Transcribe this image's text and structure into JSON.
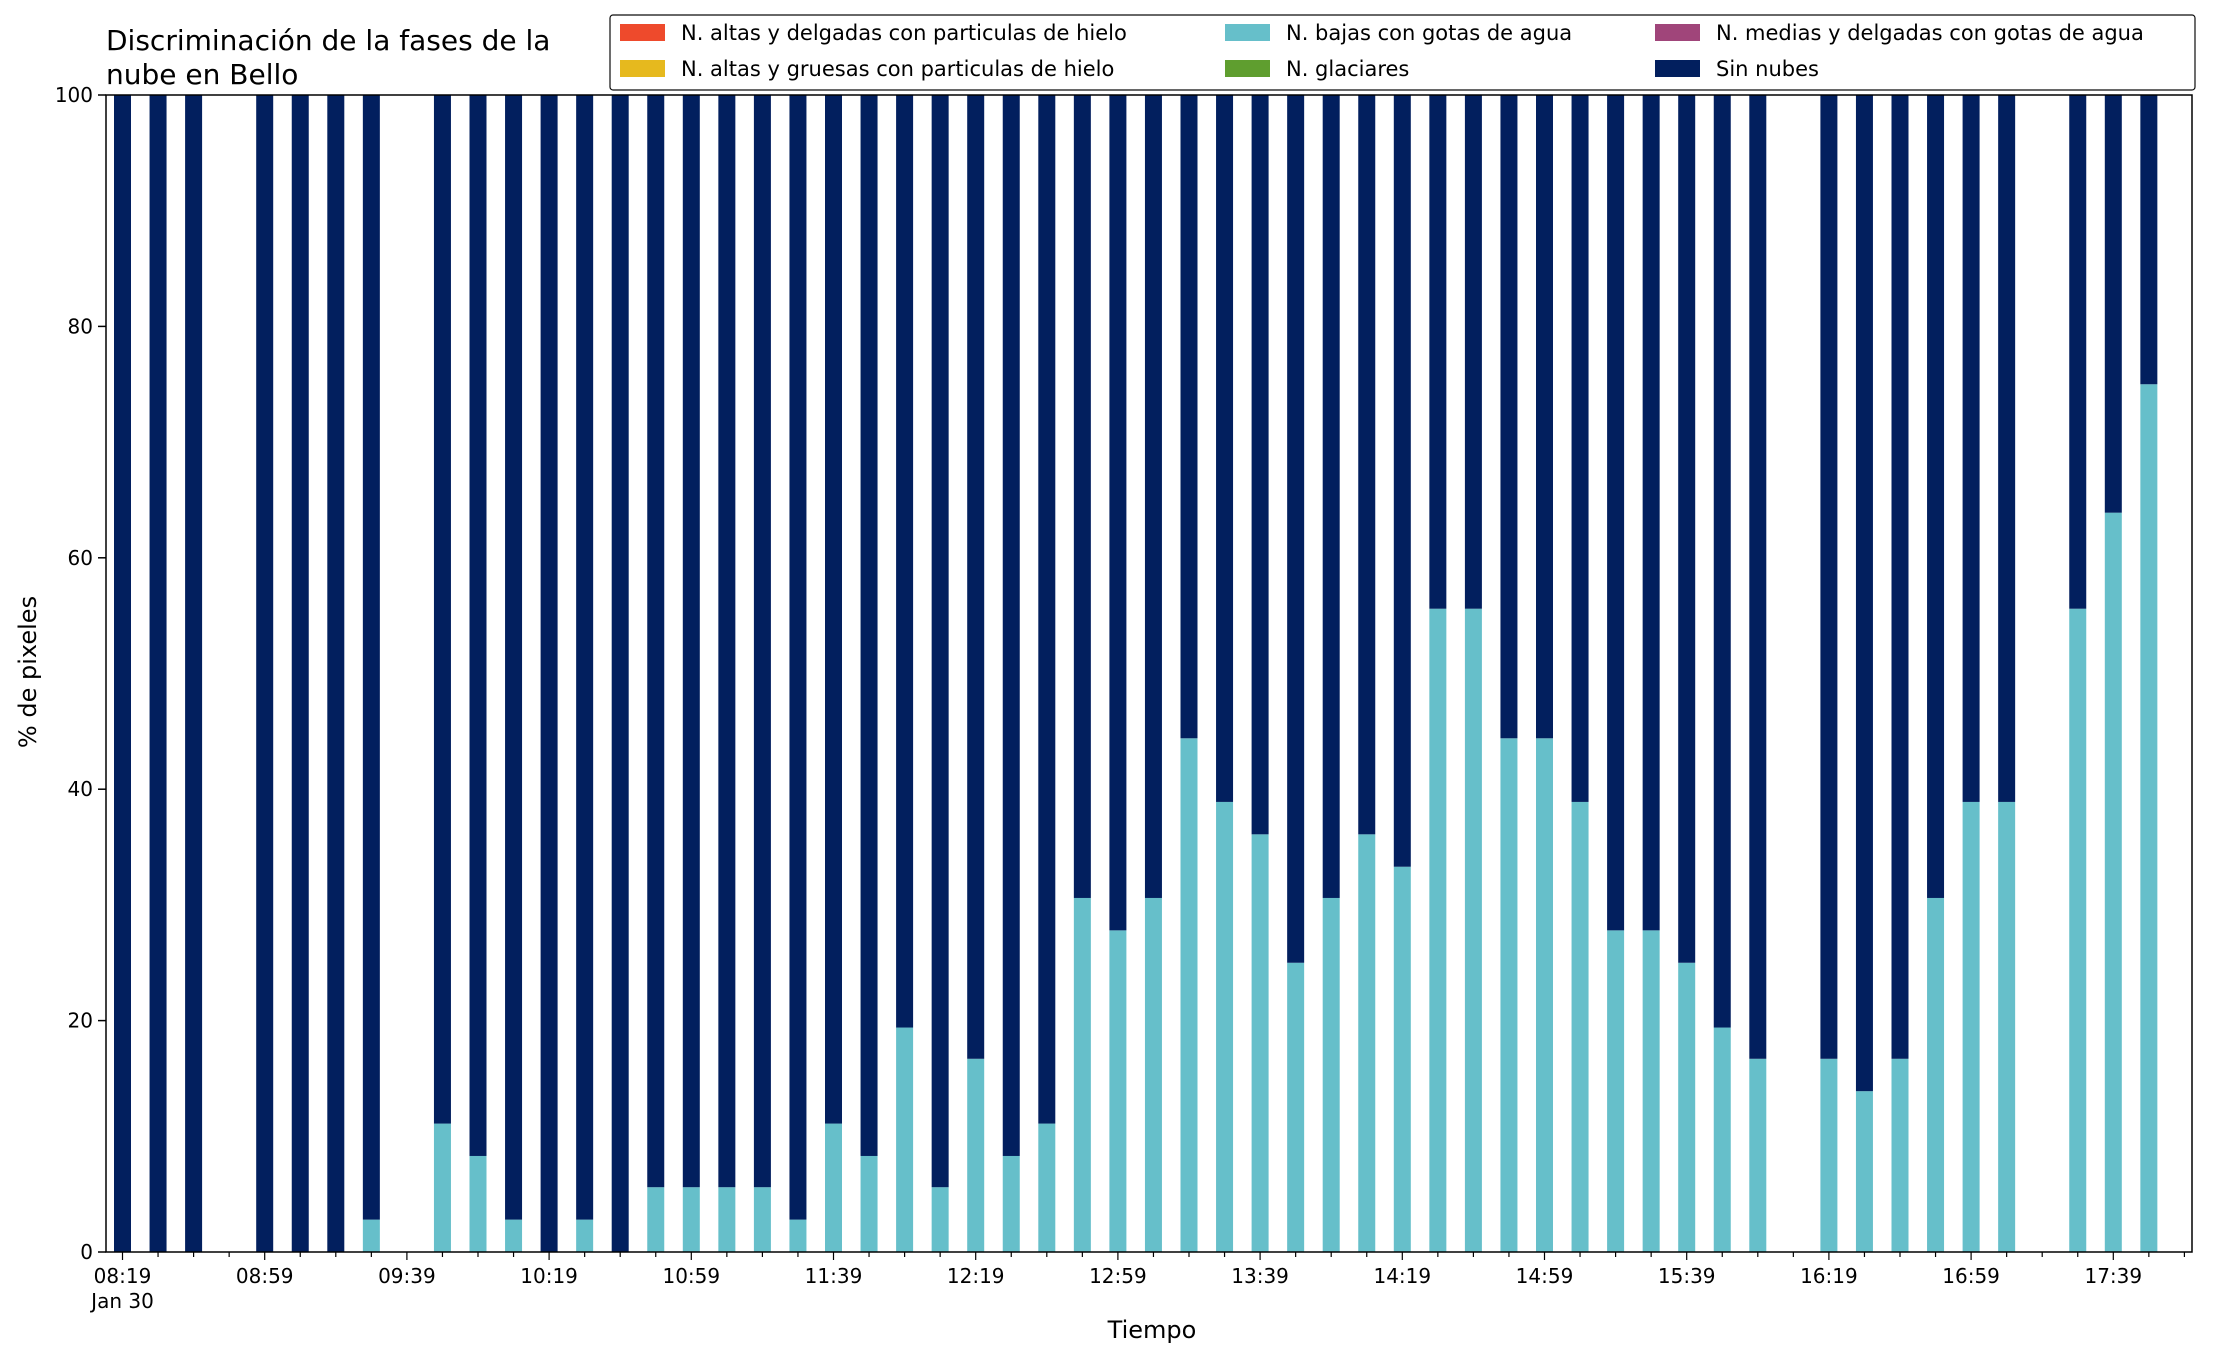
{
  "chart_data": {
    "type": "bar",
    "stacked": true,
    "title_lines": [
      "Discriminación de la fases de la",
      "nube en Bello"
    ],
    "xlabel": "Tiempo",
    "ylabel": "% de pixeles",
    "ylim": [
      0,
      100
    ],
    "yticks": [
      "0",
      "20",
      "40",
      "60",
      "80",
      "100"
    ],
    "grid": false,
    "legend_position": "top-right",
    "x_start": "08:19",
    "x_step_minutes": 10,
    "x_count": 59,
    "xtick_labels": [
      "08:19",
      "08:59",
      "09:39",
      "10:19",
      "10:59",
      "11:39",
      "12:19",
      "12:59",
      "13:39",
      "14:19",
      "14:59",
      "15:39",
      "16:19",
      "16:59",
      "17:39"
    ],
    "xtick_sublabel": "Jan 30",
    "legend": [
      {
        "name": "N. altas y delgadas con particulas de hielo",
        "color": "#ee4a2c"
      },
      {
        "name": "N. altas y gruesas con particulas de hielo",
        "color": "#e6b91e"
      },
      {
        "name": "N. bajas con gotas de agua",
        "color": "#66bfca"
      },
      {
        "name": "N. glaciares",
        "color": "#5f9e2f"
      },
      {
        "name": "N. medias y delgadas con gotas de agua",
        "color": "#a0457a"
      },
      {
        "name": "Sin nubes",
        "color": "#021f5e"
      }
    ],
    "series": [
      {
        "name": "N. bajas con gotas de agua",
        "color": "#66bfca",
        "values": [
          0,
          0,
          0,
          null,
          0,
          0,
          0,
          2.8,
          null,
          11.1,
          8.3,
          2.8,
          0,
          2.8,
          0,
          5.6,
          5.6,
          5.6,
          5.6,
          2.8,
          11.1,
          8.3,
          19.4,
          5.6,
          16.7,
          8.3,
          11.1,
          30.6,
          27.8,
          30.6,
          44.4,
          38.9,
          36.1,
          25.0,
          30.6,
          36.1,
          33.3,
          55.6,
          55.6,
          44.4,
          44.4,
          38.9,
          27.8,
          27.8,
          25.0,
          19.4,
          16.7,
          null,
          16.7,
          13.9,
          16.7,
          30.6,
          38.9,
          38.9,
          null,
          55.6,
          63.9,
          75.0,
          null
        ]
      },
      {
        "name": "Sin nubes",
        "color": "#021f5e",
        "values": [
          100,
          100,
          100,
          null,
          100,
          100,
          100,
          97.2,
          null,
          88.9,
          91.7,
          97.2,
          100,
          97.2,
          100,
          94.4,
          94.4,
          94.4,
          94.4,
          97.2,
          88.9,
          91.7,
          80.6,
          94.4,
          83.3,
          91.7,
          88.9,
          69.4,
          72.2,
          69.4,
          55.6,
          61.1,
          63.9,
          75.0,
          69.4,
          63.9,
          66.7,
          44.4,
          44.4,
          55.6,
          55.6,
          61.1,
          72.2,
          72.2,
          75.0,
          80.6,
          83.3,
          null,
          83.3,
          86.1,
          83.3,
          69.4,
          61.1,
          61.1,
          null,
          44.4,
          36.1,
          25.0,
          null
        ]
      }
    ]
  }
}
